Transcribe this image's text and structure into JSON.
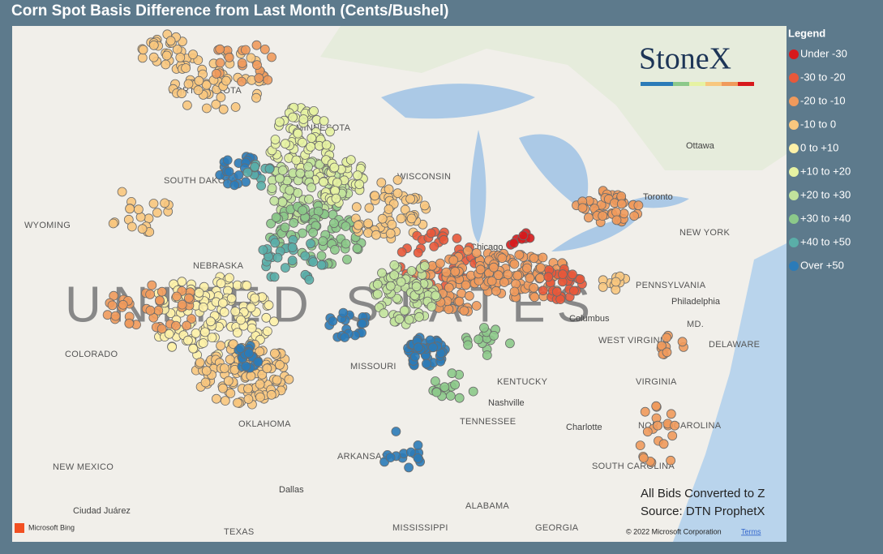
{
  "header": {
    "title": "Corn Spot Basis Difference from Last Month (Cents/Bushel)"
  },
  "legend": {
    "title": "Legend",
    "items": [
      {
        "label": "Under -30",
        "color": "#d7191c"
      },
      {
        "label": "-30 to -20",
        "color": "#e8583a"
      },
      {
        "label": "-20 to -10",
        "color": "#f09a5c"
      },
      {
        "label": "-10 to 0",
        "color": "#f8c77e"
      },
      {
        "label": "0 to +10",
        "color": "#fdf1a8"
      },
      {
        "label": "+10 to +20",
        "color": "#e6f2a2"
      },
      {
        "label": "+20 to +30",
        "color": "#c2e39c"
      },
      {
        "label": "+30 to +40",
        "color": "#8cc98a"
      },
      {
        "label": "+40 to +50",
        "color": "#5aaea8"
      },
      {
        "label": "Over +50",
        "color": "#2b7bb8"
      }
    ]
  },
  "logo": "StoneX",
  "notes": [
    "All Bids Converted to Z",
    "Source: DTN ProphetX"
  ],
  "map": {
    "labels": [
      "NORTH DAKOTA",
      "MINNESOTA",
      "SOUTH DAKOTA",
      "WISCONSIN",
      "WYOMING",
      "NEBRASKA",
      "UNITED STATES",
      "COLORADO",
      "MISSOURI",
      "KENTUCKY",
      "OKLAHOMA",
      "TENNESSEE",
      "ARKANSAS",
      "NEW MEXICO",
      "TEXAS",
      "MISSISSIPPI",
      "ALABAMA",
      "GEORGIA",
      "SOUTH CAROLINA",
      "NORTH CAROLINA",
      "VIRGINIA",
      "WEST VIRGINIA",
      "PENNSYLVANIA",
      "NEW YORK",
      "Ottawa",
      "Toronto",
      "Chicago",
      "Columbus",
      "Nashville",
      "Dallas",
      "Philadelphia",
      "Charlotte",
      "Ciudad Juárez",
      "DELAWARE",
      "MD."
    ],
    "attribution": "Microsoft Bing",
    "copyright": "© 2022 Microsoft Corporation",
    "terms": "Terms"
  }
}
